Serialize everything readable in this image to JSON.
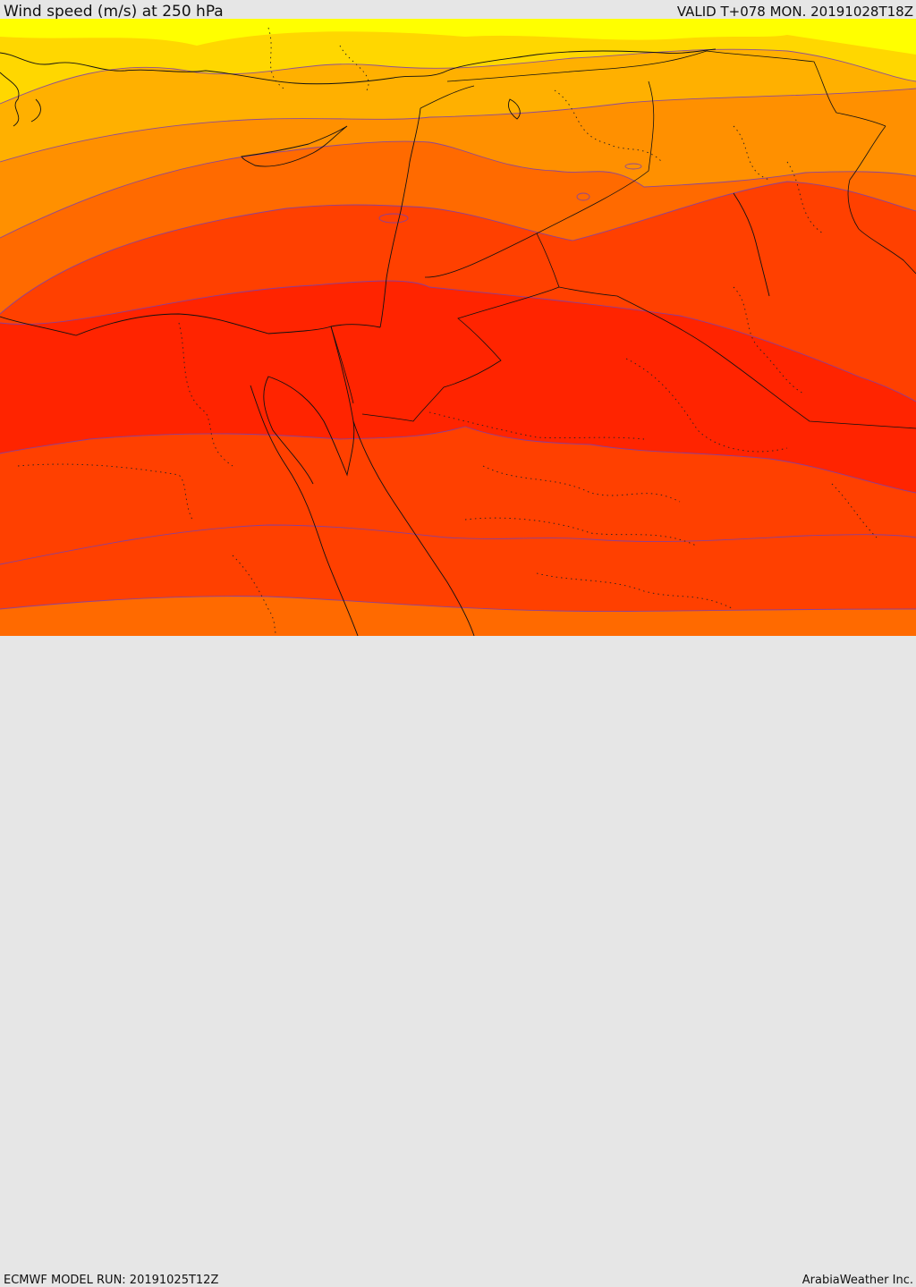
{
  "header": {
    "title": "Wind speed (m/s) at 250 hPa",
    "valid": "VALID T+078 MON. 20191028T18Z"
  },
  "footer": {
    "model_run": "ECMWF MODEL RUN: 20191025T12Z",
    "credit": "ArabiaWeather Inc."
  },
  "map": {
    "field": "wind speed at 250 hPa",
    "palette": [
      "#ffff00",
      "#ffd700",
      "#ffb000",
      "#ff9000",
      "#ff6a00",
      "#ff4000",
      "#ff2400"
    ]
  }
}
